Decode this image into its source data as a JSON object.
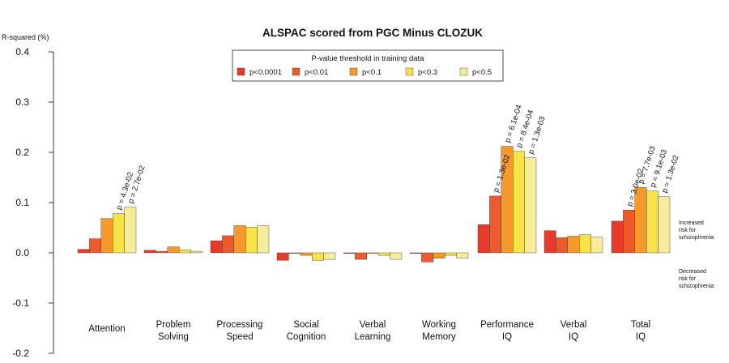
{
  "chart_data": {
    "type": "bar",
    "title": "ALSPAC scored from PGC Minus CLOZUK",
    "ylabel": "R-squared (%)",
    "xlabel": "",
    "ylim": [
      -0.2,
      0.4
    ],
    "yticks": [
      "0.4",
      "0.3",
      "0.2",
      "0.1",
      "0.0",
      "-0.1",
      "-0.2"
    ],
    "ytick_values": [
      0.4,
      0.3,
      0.2,
      0.1,
      0.0,
      -0.1,
      -0.2
    ],
    "categories": [
      [
        "Attention"
      ],
      [
        "Problem",
        "Solving"
      ],
      [
        "Processing",
        "Speed"
      ],
      [
        "Social",
        "Cognition"
      ],
      [
        "Verbal",
        "Learning"
      ],
      [
        "Working",
        "Memory"
      ],
      [
        "Performance",
        "IQ"
      ],
      [
        "Verbal",
        "IQ"
      ],
      [
        "Total",
        "IQ"
      ]
    ],
    "legend": {
      "title": "P-value threshold in training data",
      "placement": "top-center"
    },
    "series": [
      {
        "name": "p<0.0001",
        "color": "#e8392a",
        "values": [
          0.007,
          0.005,
          0.024,
          -0.015,
          0.0,
          0.0,
          0.056,
          0.044,
          0.063
        ]
      },
      {
        "name": "p<0.01",
        "color": "#ee5a2a",
        "values": [
          0.028,
          0.003,
          0.034,
          0.0,
          -0.013,
          -0.018,
          0.113,
          0.03,
          0.085
        ]
      },
      {
        "name": "p<0.1",
        "color": "#f59a2a",
        "values": [
          0.068,
          0.012,
          0.054,
          -0.005,
          0.0,
          -0.011,
          0.212,
          0.033,
          0.13
        ]
      },
      {
        "name": "p<0.3",
        "color": "#f6e34a",
        "values": [
          0.078,
          0.006,
          0.051,
          -0.015,
          -0.005,
          -0.005,
          0.202,
          0.036,
          0.123
        ]
      },
      {
        "name": "p<0.5",
        "color": "#f6ec9c",
        "values": [
          0.091,
          0.003,
          0.054,
          -0.013,
          -0.013,
          -0.011,
          0.189,
          0.031,
          0.112
        ]
      }
    ],
    "annotations": [
      {
        "category": 0,
        "series": 3,
        "text": "p = 4.3e-02"
      },
      {
        "category": 0,
        "series": 4,
        "text": "p = 2.7e-02"
      },
      {
        "category": 6,
        "series": 1,
        "text": "p = 1.3e-02"
      },
      {
        "category": 6,
        "series": 2,
        "text": "p = 6.1e-04"
      },
      {
        "category": 6,
        "series": 3,
        "text": "p = 8.4e-04"
      },
      {
        "category": 6,
        "series": 4,
        "text": "p = 1.3e-03"
      },
      {
        "category": 8,
        "series": 1,
        "text": "p = 3.0e-02"
      },
      {
        "category": 8,
        "series": 2,
        "text": "p = 7.7e-03"
      },
      {
        "category": 8,
        "series": 3,
        "text": "p = 9.1e-03"
      },
      {
        "category": 8,
        "series": 4,
        "text": "p = 1.3e-02"
      }
    ],
    "side_notes": {
      "increased": [
        "Increased",
        "risk for",
        "schizophrenia"
      ],
      "decreased": [
        "Decreased",
        "risk for",
        "schizophrenia"
      ]
    },
    "grid": false
  }
}
